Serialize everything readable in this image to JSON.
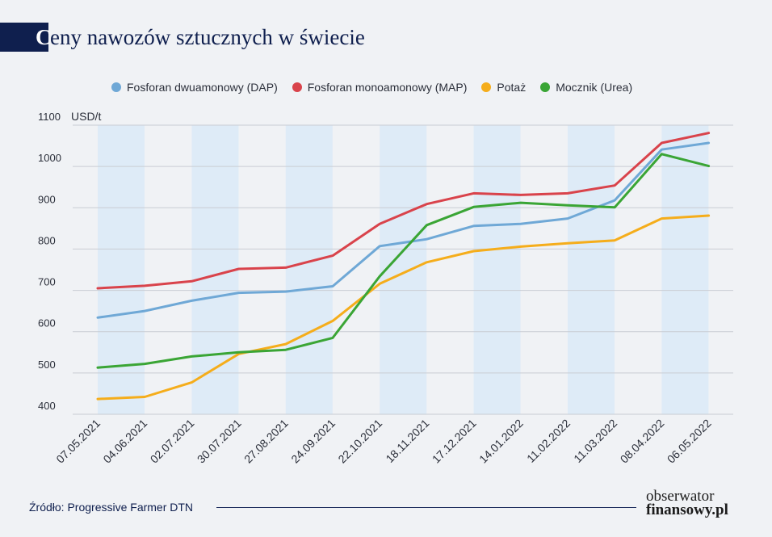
{
  "title": {
    "initial": "C",
    "rest": "eny nawozów sztucznych w świecie"
  },
  "source": "Źródło: Progressive Farmer DTN",
  "logo": {
    "line1": "obserwator",
    "line2": "finansowy.pl"
  },
  "colors": {
    "background": "#f0f2f5",
    "band": "#deebf7",
    "grid": "#c9ccd3",
    "axis_text": "#2b2f3a",
    "title": "#0f1f4e"
  },
  "chart_data": {
    "type": "line",
    "title": "Ceny nawozów sztucznych w świecie",
    "ylabel": "USD/t",
    "xlabel": "",
    "ylim": [
      400,
      1100
    ],
    "yticks": [
      400,
      500,
      600,
      700,
      800,
      900,
      1000,
      1100
    ],
    "grid": true,
    "legend_position": "top",
    "categories": [
      "07.05.2021",
      "04.06.2021",
      "02.07.2021",
      "30.07.2021",
      "27.08.2021",
      "24.09.2021",
      "22.10.2021",
      "18.11.2021",
      "17.12.2021",
      "14.01.2022",
      "11.02.2022",
      "11.03.2022",
      "08.04.2022",
      "06.05.2022"
    ],
    "series": [
      {
        "name": "Fosforan dwuamonowy (DAP)",
        "color": "#6fa8d6",
        "values": [
          634,
          650,
          675,
          694,
          697,
          710,
          807,
          824,
          856,
          861,
          874,
          918,
          1041,
          1057
        ]
      },
      {
        "name": "Fosforan monoamonowy (MAP)",
        "color": "#d9434b",
        "values": [
          705,
          711,
          722,
          752,
          755,
          784,
          861,
          909,
          935,
          931,
          935,
          954,
          1057,
          1081
        ]
      },
      {
        "name": "Potaż",
        "color": "#f5ad1b",
        "values": [
          437,
          442,
          477,
          546,
          570,
          626,
          716,
          768,
          795,
          806,
          814,
          821,
          874,
          881
        ]
      },
      {
        "name": "Mocznik (Urea)",
        "color": "#3aa535",
        "values": [
          513,
          522,
          540,
          550,
          556,
          585,
          734,
          858,
          902,
          912,
          906,
          901,
          1030,
          1001
        ]
      }
    ]
  }
}
